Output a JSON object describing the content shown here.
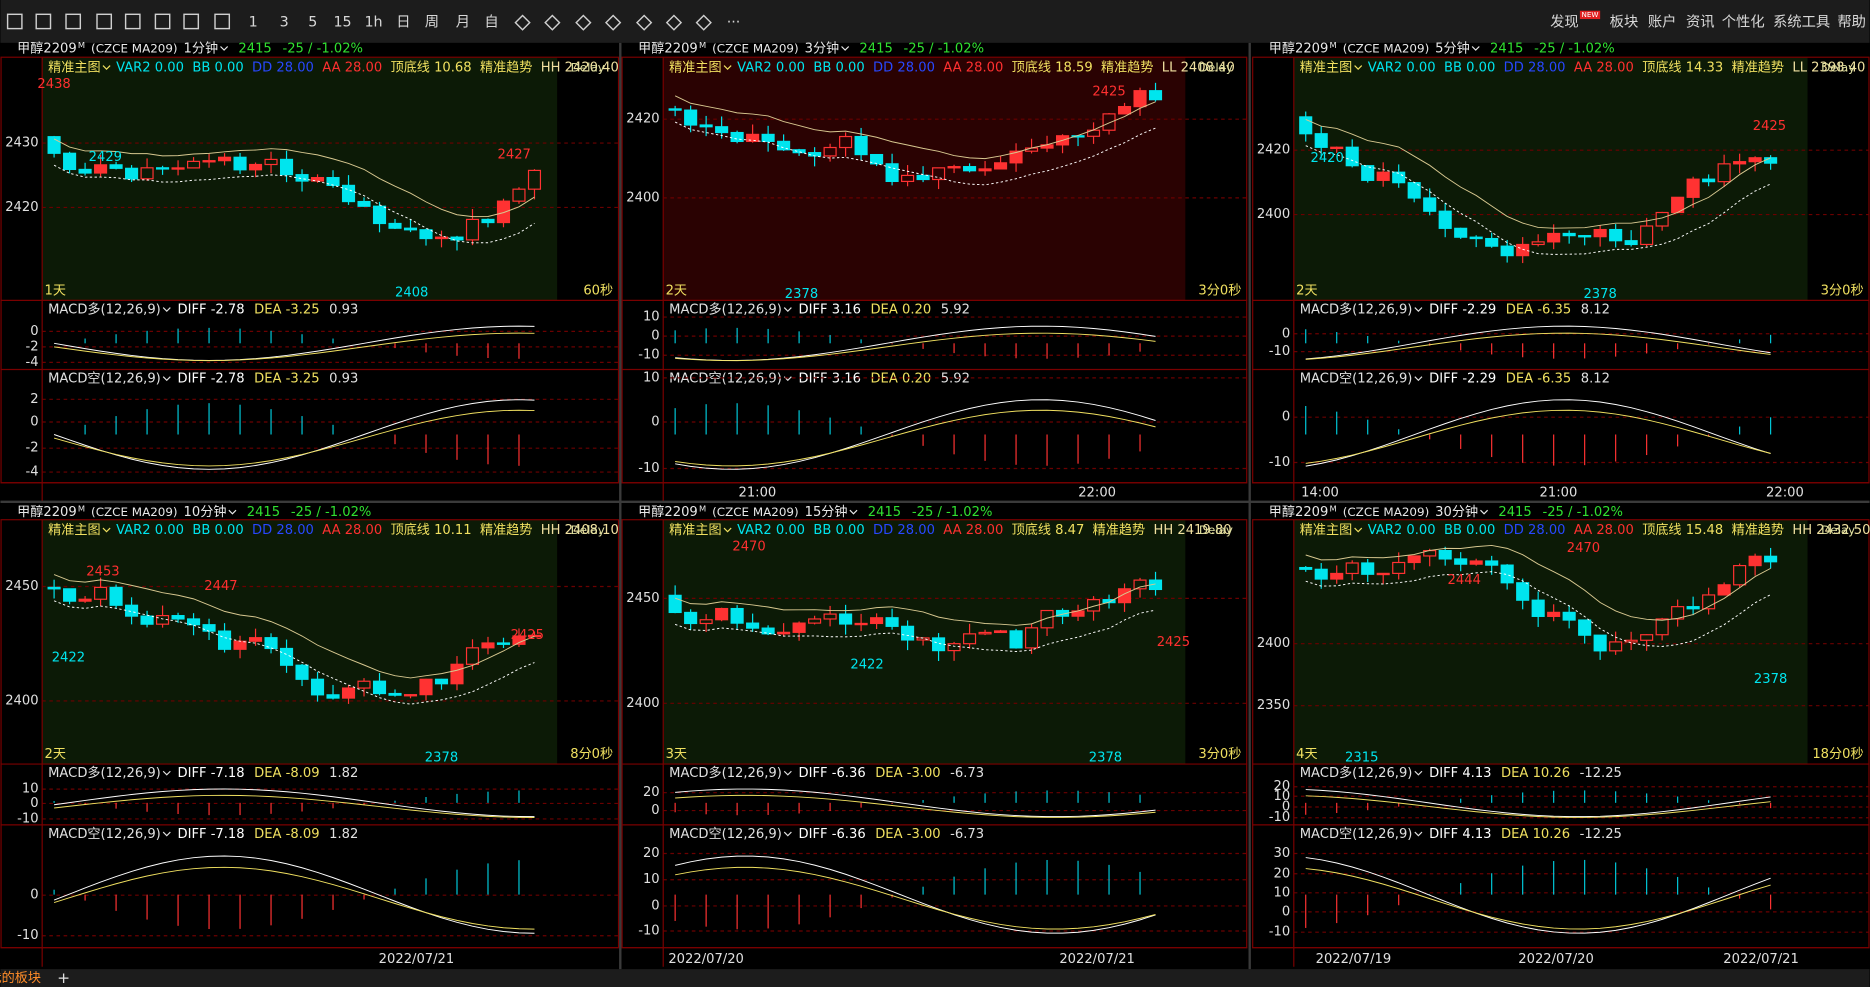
{
  "toolbar": {
    "periods": [
      "1",
      "3",
      "5",
      "15",
      "1h",
      "日",
      "周",
      "月",
      "自"
    ],
    "more": "···",
    "menu": [
      "发现",
      "板块",
      "账户",
      "资讯",
      "个性化",
      "系统工具",
      "帮助"
    ],
    "badge": "NEW"
  },
  "panels": [
    {
      "symbol": "甲醇2209",
      "market": "M",
      "code": "(CZCE MA209)",
      "period": "1分钟",
      "price": "2415",
      "change": "-25 / -1.02%",
      "main": {
        "label": "精准主图",
        "items": [
          {
            "text": "VAR2 0.00",
            "color": "#00e5ee"
          },
          {
            "text": "BB 0.00",
            "color": "#00e5ee"
          },
          {
            "text": "DD 28.00",
            "color": "#2848ff"
          },
          {
            "text": "AA 28.00",
            "color": "#ff3030"
          },
          {
            "text": "顶底线 10.68",
            "color": "#f0e060"
          },
          {
            "text": "精准趋势",
            "color": "#f0e060"
          },
          {
            "text": "HH 2420.40",
            "color": "#f0e0a0"
          }
        ],
        "delay": "Delay",
        "yticks": [
          "2430",
          "2420"
        ],
        "annotations": [
          {
            "text": "2438",
            "color": "#ff3030"
          },
          {
            "text": "2429",
            "color": "#00e5ee"
          },
          {
            "text": "2408",
            "color": "#00e5ee"
          },
          {
            "text": "2427",
            "color": "#ff3030"
          }
        ],
        "span": "1天",
        "countdown": "60秒"
      },
      "macd_long": {
        "label": "MACD多(12,26,9)",
        "diff": "DIFF -2.78",
        "dea": "DEA -3.25",
        "macd": "0.93",
        "yticks": [
          "0",
          "-2",
          "-4"
        ]
      },
      "macd_short": {
        "label": "MACD空(12,26,9)",
        "diff": "DIFF -2.78",
        "dea": "DEA -3.25",
        "macd": "0.93",
        "yticks": [
          "2",
          "0",
          "-2",
          "-4"
        ]
      },
      "times": []
    },
    {
      "symbol": "甲醇2209",
      "market": "M",
      "code": "(CZCE MA209)",
      "period": "3分钟",
      "price": "2415",
      "change": "-25 / -1.02%",
      "main": {
        "label": "精准主图",
        "items": [
          {
            "text": "VAR2 0.00",
            "color": "#00e5ee"
          },
          {
            "text": "BB 0.00",
            "color": "#00e5ee"
          },
          {
            "text": "DD 28.00",
            "color": "#2848ff"
          },
          {
            "text": "AA 28.00",
            "color": "#ff3030"
          },
          {
            "text": "顶底线 18.59",
            "color": "#f0e060"
          },
          {
            "text": "精准趋势",
            "color": "#f0e060"
          },
          {
            "text": "LL 2408.40",
            "color": "#f0e0a0"
          }
        ],
        "delay": "Delay",
        "yticks": [
          "2420",
          "2400"
        ],
        "annotations": [
          {
            "text": "2425",
            "color": "#ff3030"
          },
          {
            "text": "2378",
            "color": "#00e5ee"
          }
        ],
        "span": "2天",
        "countdown": "3分0秒"
      },
      "macd_long": {
        "label": "MACD多(12,26,9)",
        "diff": "DIFF 3.16",
        "dea": "DEA 0.20",
        "macd": "5.92",
        "yticks": [
          "10",
          "0",
          "-10"
        ]
      },
      "macd_short": {
        "label": "MACD空(12,26,9)",
        "diff": "DIFF 3.16",
        "dea": "DEA 0.20",
        "macd": "5.92",
        "yticks": [
          "10",
          "0",
          "-10"
        ]
      },
      "times": [
        "21:00",
        "22:00"
      ]
    },
    {
      "symbol": "甲醇2209",
      "market": "M",
      "code": "(CZCE MA209)",
      "period": "5分钟",
      "price": "2415",
      "change": "-25 / -1.02%",
      "main": {
        "label": "精准主图",
        "items": [
          {
            "text": "VAR2 0.00",
            "color": "#00e5ee"
          },
          {
            "text": "BB 0.00",
            "color": "#00e5ee"
          },
          {
            "text": "DD 28.00",
            "color": "#2848ff"
          },
          {
            "text": "AA 28.00",
            "color": "#ff3030"
          },
          {
            "text": "顶底线 14.33",
            "color": "#f0e060"
          },
          {
            "text": "精准趋势",
            "color": "#f0e060"
          },
          {
            "text": "LL 2398.40",
            "color": "#f0e0a0"
          }
        ],
        "delay": "Delay",
        "yticks": [
          "2420",
          "2400"
        ],
        "annotations": [
          {
            "text": "2425",
            "color": "#ff3030"
          },
          {
            "text": "2420",
            "color": "#00e5ee"
          },
          {
            "text": "2378",
            "color": "#00e5ee"
          }
        ],
        "span": "2天",
        "countdown": "3分0秒"
      },
      "macd_long": {
        "label": "MACD多(12,26,9)",
        "diff": "DIFF -2.29",
        "dea": "DEA -6.35",
        "macd": "8.12",
        "yticks": [
          "0",
          "-10"
        ]
      },
      "macd_short": {
        "label": "MACD空(12,26,9)",
        "diff": "DIFF -2.29",
        "dea": "DEA -6.35",
        "macd": "8.12",
        "yticks": [
          "0",
          "-10"
        ]
      },
      "times": [
        "14:00",
        "21:00",
        "22:00"
      ]
    },
    {
      "symbol": "甲醇2209",
      "market": "M",
      "code": "(CZCE MA209)",
      "period": "10分钟",
      "price": "2415",
      "change": "-25 / -1.02%",
      "main": {
        "label": "精准主图",
        "items": [
          {
            "text": "VAR2 0.00",
            "color": "#00e5ee"
          },
          {
            "text": "BB 0.00",
            "color": "#00e5ee"
          },
          {
            "text": "DD 28.00",
            "color": "#2848ff"
          },
          {
            "text": "AA 28.00",
            "color": "#ff3030"
          },
          {
            "text": "顶底线 10.11",
            "color": "#f0e060"
          },
          {
            "text": "精准趋势",
            "color": "#f0e060"
          },
          {
            "text": "HH 2408.10",
            "color": "#f0e0a0"
          }
        ],
        "delay": "Delay",
        "yticks": [
          "2450",
          "2400"
        ],
        "annotations": [
          {
            "text": "2453",
            "color": "#ff3030"
          },
          {
            "text": "2447",
            "color": "#ff3030"
          },
          {
            "text": "2422",
            "color": "#00e5ee"
          },
          {
            "text": "2425",
            "color": "#ff3030"
          },
          {
            "text": "2378",
            "color": "#00e5ee"
          }
        ],
        "span": "2天",
        "countdown": "8分0秒"
      },
      "macd_long": {
        "label": "MACD多(12,26,9)",
        "diff": "DIFF -7.18",
        "dea": "DEA -8.09",
        "macd": "1.82",
        "yticks": [
          "10",
          "0",
          "-10"
        ]
      },
      "macd_short": {
        "label": "MACD空(12,26,9)",
        "diff": "DIFF -7.18",
        "dea": "DEA -8.09",
        "macd": "1.82",
        "yticks": [
          "0",
          "-10"
        ]
      },
      "times": [
        "2022/07/21"
      ]
    },
    {
      "symbol": "甲醇2209",
      "market": "M",
      "code": "(CZCE MA209)",
      "period": "15分钟",
      "price": "2415",
      "change": "-25 / -1.02%",
      "main": {
        "label": "精准主图",
        "items": [
          {
            "text": "VAR2 0.00",
            "color": "#00e5ee"
          },
          {
            "text": "BB 0.00",
            "color": "#00e5ee"
          },
          {
            "text": "DD 28.00",
            "color": "#2848ff"
          },
          {
            "text": "AA 28.00",
            "color": "#ff3030"
          },
          {
            "text": "顶底线 8.47",
            "color": "#f0e060"
          },
          {
            "text": "精准趋势",
            "color": "#f0e060"
          },
          {
            "text": "HH 2419.80",
            "color": "#f0e0a0"
          }
        ],
        "delay": "Delay",
        "yticks": [
          "2450",
          "2400"
        ],
        "annotations": [
          {
            "text": "2470",
            "color": "#ff3030"
          },
          {
            "text": "2422",
            "color": "#00e5ee"
          },
          {
            "text": "2425",
            "color": "#ff3030"
          },
          {
            "text": "2378",
            "color": "#00e5ee"
          }
        ],
        "span": "3天",
        "countdown": "3分0秒"
      },
      "macd_long": {
        "label": "MACD多(12,26,9)",
        "diff": "DIFF -6.36",
        "dea": "DEA -3.00",
        "macd": "-6.73",
        "yticks": [
          "20",
          "0"
        ]
      },
      "macd_short": {
        "label": "MACD空(12,26,9)",
        "diff": "DIFF -6.36",
        "dea": "DEA -3.00",
        "macd": "-6.73",
        "yticks": [
          "20",
          "10",
          "0",
          "-10"
        ]
      },
      "times": [
        "2022/07/20",
        "2022/07/21"
      ]
    },
    {
      "symbol": "甲醇2209",
      "market": "M",
      "code": "(CZCE MA209)",
      "period": "30分钟",
      "price": "2415",
      "change": "-25 / -1.02%",
      "main": {
        "label": "精准主图",
        "items": [
          {
            "text": "VAR2 0.00",
            "color": "#00e5ee"
          },
          {
            "text": "BB 0.00",
            "color": "#00e5ee"
          },
          {
            "text": "DD 28.00",
            "color": "#2848ff"
          },
          {
            "text": "AA 28.00",
            "color": "#ff3030"
          },
          {
            "text": "顶底线 15.48",
            "color": "#f0e060"
          },
          {
            "text": "精准趋势",
            "color": "#f0e060"
          },
          {
            "text": "HH 2432.50",
            "color": "#f0e0a0"
          }
        ],
        "delay": "Delay",
        "yticks": [
          "2400",
          "2350"
        ],
        "annotations": [
          {
            "text": "2470",
            "color": "#ff3030"
          },
          {
            "text": "2444",
            "color": "#ff3030"
          },
          {
            "text": "2378",
            "color": "#00e5ee"
          },
          {
            "text": "2315",
            "color": "#00e5ee"
          }
        ],
        "span": "4天",
        "countdown": "18分0秒"
      },
      "macd_long": {
        "label": "MACD多(12,26,9)",
        "diff": "DIFF 4.13",
        "dea": "DEA 10.26",
        "macd": "-12.25",
        "yticks": [
          "20",
          "10",
          "0",
          "-10"
        ]
      },
      "macd_short": {
        "label": "MACD空(12,26,9)",
        "diff": "DIFF 4.13",
        "dea": "DEA 10.26",
        "macd": "-12.25",
        "yticks": [
          "30",
          "20",
          "10",
          "0",
          "-10"
        ]
      },
      "times": [
        "2022/07/19",
        "2022/07/20",
        "2022/07/21"
      ]
    }
  ],
  "footer": {
    "tab": "我的板块",
    "add": "+"
  }
}
